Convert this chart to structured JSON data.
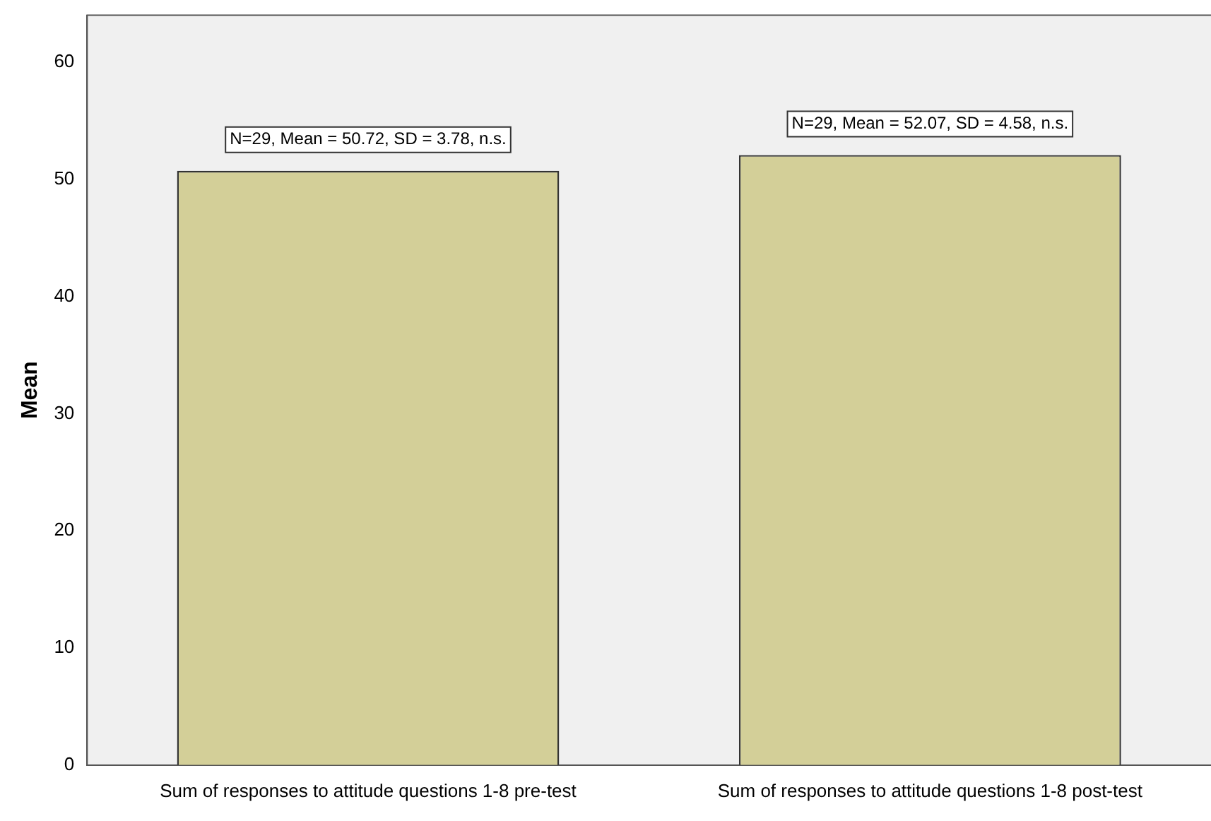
{
  "chart_data": {
    "type": "bar",
    "ylabel": "Mean",
    "categories": [
      "Sum of responses to attitude questions 1-8 pre-test",
      "Sum of responses to attitude questions 1-8 post-test"
    ],
    "values": [
      50.72,
      52.07
    ],
    "color": "#d3cf98",
    "ylim": [
      0,
      64
    ],
    "yticks": [
      0,
      10,
      20,
      30,
      40,
      50,
      60
    ],
    "grid": false,
    "annotations": [
      {
        "text": "N=29, Mean = 50.72, SD = 3.78, n.s.",
        "x": "Sum of responses to attitude questions 1-8 pre-test",
        "y": 50.72
      },
      {
        "text": "N=29, Mean = 52.07, SD = 4.58, n.s.",
        "x": "Sum of responses to attitude questions 1-8 post-test",
        "y": 52.07
      }
    ]
  }
}
